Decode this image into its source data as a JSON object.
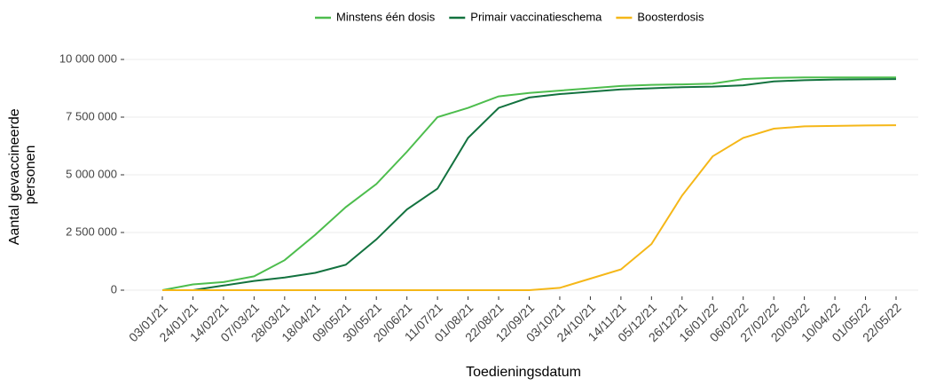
{
  "chart_data": {
    "type": "line",
    "x_label": "Toedieningsdatum",
    "y_label": [
      "Aantal gevaccineerde",
      "personen"
    ],
    "x": [
      "03/01/21",
      "24/01/21",
      "14/02/21",
      "07/03/21",
      "28/03/21",
      "18/04/21",
      "09/05/21",
      "30/05/21",
      "20/06/21",
      "11/07/21",
      "01/08/21",
      "22/08/21",
      "12/09/21",
      "03/10/21",
      "24/10/21",
      "14/11/21",
      "05/12/21",
      "26/12/21",
      "16/01/22",
      "06/02/22",
      "27/02/22",
      "20/03/22",
      "10/04/22",
      "01/05/22",
      "22/05/22"
    ],
    "series": [
      {
        "name": "Minstens één dosis",
        "color": "#4dbd4d",
        "values": [
          0,
          250000,
          350000,
          600000,
          1300000,
          2400000,
          3600000,
          4600000,
          6000000,
          7500000,
          7900000,
          8400000,
          8550000,
          8650000,
          8750000,
          8850000,
          8900000,
          8920000,
          8950000,
          9150000,
          9200000,
          9220000,
          9220000,
          9220000,
          9220000
        ]
      },
      {
        "name": "Primair vaccinatieschema",
        "color": "#13723f",
        "values": [
          0,
          0,
          200000,
          400000,
          550000,
          750000,
          1100000,
          2200000,
          3500000,
          4400000,
          6600000,
          7900000,
          8350000,
          8500000,
          8600000,
          8700000,
          8750000,
          8800000,
          8820000,
          8880000,
          9050000,
          9100000,
          9130000,
          9140000,
          9150000
        ]
      },
      {
        "name": "Boosterdosis",
        "color": "#f5b718",
        "values": [
          0,
          0,
          0,
          0,
          0,
          0,
          0,
          0,
          0,
          0,
          0,
          0,
          0,
          100000,
          500000,
          900000,
          2000000,
          4100000,
          5800000,
          6600000,
          7000000,
          7100000,
          7120000,
          7140000,
          7150000
        ]
      }
    ],
    "ylim": [
      0,
      10000000
    ],
    "yticks": [
      {
        "value": 0,
        "label": "0"
      },
      {
        "value": 2500000,
        "label": "2 500 000"
      },
      {
        "value": 5000000,
        "label": "5 000 000"
      },
      {
        "value": 7500000,
        "label": "7 500 000"
      },
      {
        "value": 10000000,
        "label": "10 000 000"
      }
    ],
    "grid": true,
    "legend": "top"
  }
}
